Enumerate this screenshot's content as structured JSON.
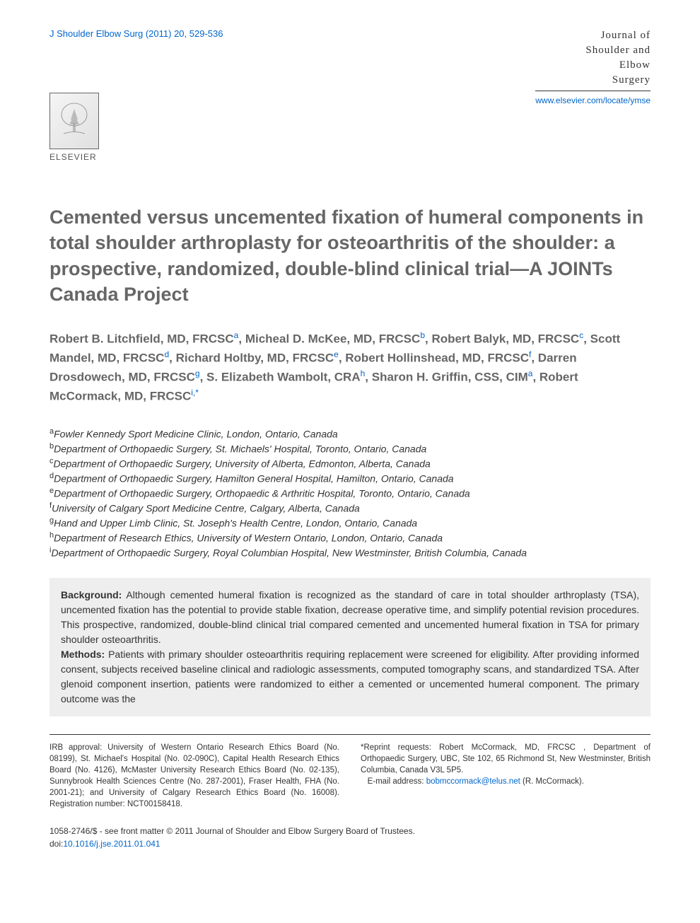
{
  "header": {
    "citation": "J Shoulder Elbow Surg (2011) 20, 529-536",
    "journal_line1": "Journal of",
    "journal_line2": "Shoulder and",
    "journal_line3": "Elbow",
    "journal_line4": "Surgery",
    "journal_url": "www.elsevier.com/locate/ymse",
    "publisher_label": "ELSEVIER"
  },
  "title": "Cemented versus uncemented fixation of humeral components in total shoulder arthroplasty for osteoarthritis of the shoulder: a prospective, randomized, double-blind clinical trial—A JOINTs Canada Project",
  "authors": [
    {
      "name": "Robert B. Litchfield, MD, FRCSC",
      "aff": "a"
    },
    {
      "name": "Micheal D. McKee, MD, FRCSC",
      "aff": "b"
    },
    {
      "name": "Robert Balyk, MD, FRCSC",
      "aff": "c"
    },
    {
      "name": "Scott Mandel, MD, FRCSC",
      "aff": "d"
    },
    {
      "name": "Richard Holtby, MD, FRCSC",
      "aff": "e"
    },
    {
      "name": "Robert Hollinshead, MD, FRCSC",
      "aff": "f"
    },
    {
      "name": "Darren Drosdowech, MD, FRCSC",
      "aff": "g"
    },
    {
      "name": "S. Elizabeth Wambolt, CRA",
      "aff": "h"
    },
    {
      "name": "Sharon H. Griffin, CSS, CIM",
      "aff": "a"
    },
    {
      "name": "Robert McCormack, MD, FRCSC",
      "aff": "i,*"
    }
  ],
  "affiliations": [
    {
      "sup": "a",
      "text": "Fowler Kennedy Sport Medicine Clinic, London, Ontario, Canada"
    },
    {
      "sup": "b",
      "text": "Department of Orthopaedic Surgery, St. Michaels' Hospital, Toronto, Ontario, Canada"
    },
    {
      "sup": "c",
      "text": "Department of Orthopaedic Surgery, University of Alberta, Edmonton, Alberta, Canada"
    },
    {
      "sup": "d",
      "text": "Department of Orthopaedic Surgery, Hamilton General Hospital, Hamilton, Ontario, Canada"
    },
    {
      "sup": "e",
      "text": "Department of Orthopaedic Surgery, Orthopaedic & Arthritic Hospital, Toronto, Ontario, Canada"
    },
    {
      "sup": "f",
      "text": "University of Calgary Sport Medicine Centre, Calgary, Alberta, Canada"
    },
    {
      "sup": "g",
      "text": "Hand and Upper Limb Clinic, St. Joseph's Health Centre, London, Ontario, Canada"
    },
    {
      "sup": "h",
      "text": "Department of Research Ethics, University of Western Ontario, London, Ontario, Canada"
    },
    {
      "sup": "i",
      "text": "Department of Orthopaedic Surgery, Royal Columbian Hospital, New Westminster, British Columbia, Canada"
    }
  ],
  "abstract": {
    "background_label": "Background:",
    "background_text": " Although cemented humeral fixation is recognized as the standard of care in total shoulder arthroplasty (TSA), uncemented fixation has the potential to provide stable fixation, decrease operative time, and simplify potential revision procedures. This prospective, randomized, double-blind clinical trial compared cemented and uncemented humeral fixation in TSA for primary shoulder osteoarthritis.",
    "methods_label": "Methods:",
    "methods_text": " Patients with primary shoulder osteoarthritis requiring replacement were screened for eligibility. After providing informed consent, subjects received baseline clinical and radiologic assessments, computed tomography scans, and standardized TSA. After glenoid component insertion, patients were randomized to either a cemented or uncemented humeral component. The primary outcome was the"
  },
  "footer": {
    "irb_text": "IRB approval: University of Western Ontario Research Ethics Board (No. 08199), St. Michael's Hospital (No. 02-090C), Capital Health Research Ethics Board (No. 4126), McMaster University Research Ethics Board (No. 02-135), Sunnybrook Health Sciences Centre (No. 287-2001), Fraser Health, FHA (No. 2001-21); and University of Calgary Research Ethics Board (No. 16008). Registration number: NCT00158418.",
    "reprint_text": "*Reprint requests: Robert McCormack, MD, FRCSC , Department of Orthopaedic Surgery, UBC, Ste 102, 65 Richmond St, New Westminster, British Columbia, Canada V3L 5P5.",
    "email_label": "E-mail address: ",
    "email": "bobmccormack@telus.net",
    "email_suffix": " (R. McCormack)."
  },
  "bottom": {
    "issn": "1058-2746/$ - see front matter © 2011 Journal of Shoulder and Elbow Surgery Board of Trustees.",
    "doi_prefix": "doi:",
    "doi": "10.1016/j.jse.2011.01.041"
  },
  "colors": {
    "link_color": "#0066cc",
    "title_color": "#666666",
    "text_color": "#333333",
    "abstract_bg": "#eeeeee",
    "page_bg": "#ffffff"
  },
  "typography": {
    "title_fontsize": 27,
    "author_fontsize": 17,
    "affiliation_fontsize": 14,
    "abstract_fontsize": 14,
    "footer_fontsize": 11.5,
    "citation_fontsize": 13
  }
}
